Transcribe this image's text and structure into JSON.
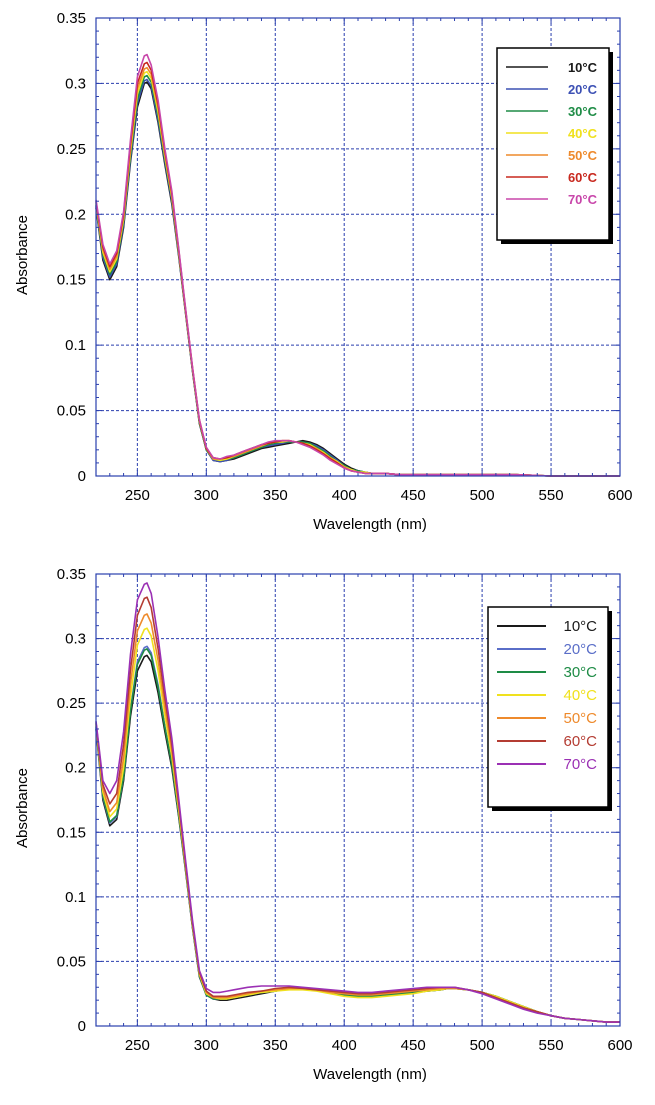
{
  "chart_data": [
    {
      "type": "line",
      "xlabel": "Wavelength (nm)",
      "ylabel": "Absorbance",
      "xlim": [
        220,
        600
      ],
      "ylim": [
        0,
        0.35
      ],
      "xticks": [
        250,
        300,
        350,
        400,
        450,
        500,
        550,
        600
      ],
      "yticks": [
        0,
        0.05,
        0.1,
        0.15,
        0.2,
        0.25,
        0.3,
        0.35
      ],
      "ytick_labels": [
        "0",
        "0.05",
        "0.1",
        "0.15",
        "0.2",
        "0.25",
        "0.3",
        "0.35"
      ],
      "grid": true,
      "legend_placement": "top-right",
      "legend_style": "bold",
      "x": [
        220,
        225,
        230,
        235,
        240,
        245,
        250,
        255,
        257,
        260,
        265,
        270,
        275,
        280,
        285,
        290,
        295,
        300,
        305,
        310,
        315,
        320,
        325,
        330,
        335,
        340,
        345,
        350,
        355,
        360,
        365,
        370,
        375,
        380,
        385,
        390,
        395,
        400,
        405,
        410,
        415,
        420,
        425,
        430,
        440,
        450,
        475,
        500,
        525,
        550,
        575,
        600
      ],
      "series": [
        {
          "name": "10°C",
          "color": "#1a1a1a",
          "values": [
            0.205,
            0.165,
            0.15,
            0.16,
            0.19,
            0.24,
            0.282,
            0.3,
            0.301,
            0.296,
            0.27,
            0.238,
            0.208,
            0.168,
            0.124,
            0.08,
            0.04,
            0.02,
            0.012,
            0.011,
            0.012,
            0.013,
            0.015,
            0.017,
            0.019,
            0.021,
            0.022,
            0.023,
            0.024,
            0.025,
            0.026,
            0.027,
            0.026,
            0.024,
            0.021,
            0.017,
            0.013,
            0.009,
            0.006,
            0.004,
            0.003,
            0.002,
            0.002,
            0.002,
            0.001,
            0.001,
            0.001,
            0.001,
            0.001,
            0.0,
            0.0,
            0.0
          ]
        },
        {
          "name": "20°C",
          "color": "#3c50b4",
          "values": [
            0.206,
            0.167,
            0.152,
            0.162,
            0.192,
            0.242,
            0.285,
            0.302,
            0.303,
            0.298,
            0.272,
            0.24,
            0.21,
            0.169,
            0.125,
            0.081,
            0.041,
            0.02,
            0.012,
            0.011,
            0.012,
            0.014,
            0.016,
            0.018,
            0.02,
            0.022,
            0.023,
            0.024,
            0.025,
            0.026,
            0.026,
            0.026,
            0.025,
            0.023,
            0.02,
            0.016,
            0.012,
            0.008,
            0.005,
            0.004,
            0.003,
            0.002,
            0.002,
            0.002,
            0.001,
            0.001,
            0.001,
            0.001,
            0.001,
            0.0,
            0.0,
            0.0
          ]
        },
        {
          "name": "30°C",
          "color": "#1e8c46",
          "values": [
            0.207,
            0.169,
            0.154,
            0.164,
            0.194,
            0.245,
            0.288,
            0.305,
            0.306,
            0.301,
            0.275,
            0.242,
            0.212,
            0.17,
            0.126,
            0.081,
            0.041,
            0.02,
            0.013,
            0.012,
            0.013,
            0.014,
            0.016,
            0.018,
            0.02,
            0.022,
            0.024,
            0.025,
            0.026,
            0.026,
            0.026,
            0.026,
            0.025,
            0.022,
            0.019,
            0.015,
            0.011,
            0.008,
            0.005,
            0.004,
            0.003,
            0.002,
            0.002,
            0.002,
            0.001,
            0.001,
            0.001,
            0.001,
            0.001,
            0.0,
            0.0,
            0.0
          ]
        },
        {
          "name": "40°C",
          "color": "#f0e11e",
          "values": [
            0.208,
            0.171,
            0.156,
            0.166,
            0.196,
            0.248,
            0.292,
            0.308,
            0.309,
            0.304,
            0.278,
            0.244,
            0.213,
            0.171,
            0.126,
            0.082,
            0.042,
            0.021,
            0.013,
            0.012,
            0.013,
            0.015,
            0.017,
            0.019,
            0.021,
            0.023,
            0.025,
            0.026,
            0.026,
            0.027,
            0.026,
            0.025,
            0.024,
            0.021,
            0.018,
            0.014,
            0.011,
            0.007,
            0.005,
            0.003,
            0.003,
            0.002,
            0.002,
            0.002,
            0.001,
            0.001,
            0.001,
            0.001,
            0.001,
            0.0,
            0.0,
            0.0
          ]
        },
        {
          "name": "50°C",
          "color": "#ee8a2c",
          "values": [
            0.209,
            0.173,
            0.158,
            0.168,
            0.198,
            0.251,
            0.296,
            0.311,
            0.312,
            0.307,
            0.281,
            0.246,
            0.215,
            0.172,
            0.127,
            0.082,
            0.042,
            0.021,
            0.013,
            0.013,
            0.014,
            0.015,
            0.017,
            0.019,
            0.021,
            0.023,
            0.025,
            0.026,
            0.027,
            0.027,
            0.026,
            0.025,
            0.023,
            0.021,
            0.017,
            0.014,
            0.01,
            0.007,
            0.004,
            0.003,
            0.002,
            0.002,
            0.002,
            0.002,
            0.001,
            0.001,
            0.001,
            0.001,
            0.001,
            0.0,
            0.0,
            0.0
          ]
        },
        {
          "name": "60°C",
          "color": "#c8281e",
          "values": [
            0.21,
            0.175,
            0.16,
            0.17,
            0.2,
            0.254,
            0.3,
            0.315,
            0.316,
            0.31,
            0.284,
            0.248,
            0.216,
            0.173,
            0.127,
            0.083,
            0.043,
            0.021,
            0.014,
            0.013,
            0.014,
            0.016,
            0.018,
            0.02,
            0.022,
            0.024,
            0.025,
            0.026,
            0.027,
            0.027,
            0.026,
            0.025,
            0.023,
            0.02,
            0.017,
            0.013,
            0.01,
            0.006,
            0.004,
            0.003,
            0.002,
            0.002,
            0.002,
            0.002,
            0.001,
            0.001,
            0.001,
            0.001,
            0.001,
            0.0,
            0.0,
            0.0
          ]
        },
        {
          "name": "70°C",
          "color": "#c846aa",
          "values": [
            0.211,
            0.177,
            0.162,
            0.172,
            0.202,
            0.257,
            0.305,
            0.321,
            0.322,
            0.314,
            0.287,
            0.25,
            0.218,
            0.174,
            0.128,
            0.083,
            0.043,
            0.022,
            0.014,
            0.013,
            0.015,
            0.016,
            0.018,
            0.02,
            0.022,
            0.024,
            0.026,
            0.027,
            0.027,
            0.027,
            0.026,
            0.024,
            0.022,
            0.019,
            0.016,
            0.012,
            0.009,
            0.006,
            0.004,
            0.003,
            0.002,
            0.002,
            0.002,
            0.002,
            0.001,
            0.001,
            0.001,
            0.001,
            0.001,
            0.0,
            0.0,
            0.0
          ]
        }
      ]
    },
    {
      "type": "line",
      "xlabel": "Wavelength (nm)",
      "ylabel": "Absorbance",
      "xlim": [
        220,
        600
      ],
      "ylim": [
        0,
        0.35
      ],
      "xticks": [
        250,
        300,
        350,
        400,
        450,
        500,
        550,
        600
      ],
      "yticks": [
        0,
        0.05,
        0.1,
        0.15,
        0.2,
        0.25,
        0.3,
        0.35
      ],
      "ytick_labels": [
        "0",
        "0.05",
        "0.1",
        "0.15",
        "0.2",
        "0.25",
        "0.3",
        "0.35"
      ],
      "grid": true,
      "legend_placement": "top-right",
      "legend_style": "regular",
      "x": [
        220,
        225,
        230,
        235,
        240,
        245,
        250,
        255,
        257,
        260,
        265,
        270,
        275,
        280,
        285,
        290,
        295,
        300,
        305,
        310,
        315,
        320,
        330,
        340,
        350,
        360,
        370,
        380,
        390,
        400,
        410,
        420,
        430,
        440,
        450,
        460,
        470,
        475,
        480,
        490,
        500,
        510,
        520,
        530,
        540,
        550,
        560,
        570,
        580,
        590,
        600
      ],
      "series": [
        {
          "name": "10°C",
          "color": "#1a1a1a",
          "values": [
            0.23,
            0.175,
            0.155,
            0.16,
            0.19,
            0.24,
            0.275,
            0.286,
            0.287,
            0.282,
            0.258,
            0.228,
            0.2,
            0.162,
            0.12,
            0.076,
            0.038,
            0.024,
            0.021,
            0.02,
            0.02,
            0.021,
            0.023,
            0.025,
            0.027,
            0.029,
            0.029,
            0.028,
            0.026,
            0.024,
            0.023,
            0.023,
            0.024,
            0.025,
            0.026,
            0.027,
            0.028,
            0.029,
            0.029,
            0.028,
            0.026,
            0.023,
            0.019,
            0.015,
            0.011,
            0.008,
            0.006,
            0.005,
            0.004,
            0.003,
            0.003
          ]
        },
        {
          "name": "20°C",
          "color": "#5a6ec8",
          "values": [
            0.231,
            0.177,
            0.157,
            0.162,
            0.193,
            0.245,
            0.282,
            0.293,
            0.294,
            0.289,
            0.264,
            0.232,
            0.203,
            0.164,
            0.121,
            0.077,
            0.039,
            0.024,
            0.021,
            0.021,
            0.021,
            0.022,
            0.024,
            0.026,
            0.027,
            0.029,
            0.029,
            0.028,
            0.026,
            0.025,
            0.023,
            0.023,
            0.024,
            0.025,
            0.026,
            0.027,
            0.028,
            0.029,
            0.029,
            0.028,
            0.026,
            0.023,
            0.019,
            0.015,
            0.011,
            0.008,
            0.006,
            0.005,
            0.004,
            0.003,
            0.003
          ]
        },
        {
          "name": "30°C",
          "color": "#1e8c46",
          "values": [
            0.232,
            0.178,
            0.158,
            0.163,
            0.193,
            0.244,
            0.28,
            0.291,
            0.292,
            0.287,
            0.262,
            0.231,
            0.203,
            0.164,
            0.121,
            0.077,
            0.039,
            0.024,
            0.021,
            0.021,
            0.021,
            0.022,
            0.024,
            0.026,
            0.027,
            0.029,
            0.029,
            0.028,
            0.026,
            0.024,
            0.023,
            0.023,
            0.024,
            0.025,
            0.026,
            0.027,
            0.028,
            0.029,
            0.029,
            0.028,
            0.026,
            0.023,
            0.019,
            0.015,
            0.011,
            0.008,
            0.006,
            0.005,
            0.004,
            0.003,
            0.003
          ]
        },
        {
          "name": "40°C",
          "color": "#f0e11e",
          "values": [
            0.233,
            0.181,
            0.162,
            0.168,
            0.2,
            0.255,
            0.295,
            0.307,
            0.308,
            0.302,
            0.275,
            0.24,
            0.209,
            0.167,
            0.123,
            0.078,
            0.04,
            0.025,
            0.022,
            0.021,
            0.021,
            0.022,
            0.024,
            0.026,
            0.027,
            0.028,
            0.028,
            0.027,
            0.025,
            0.023,
            0.022,
            0.022,
            0.023,
            0.024,
            0.025,
            0.027,
            0.028,
            0.029,
            0.029,
            0.028,
            0.026,
            0.023,
            0.019,
            0.015,
            0.011,
            0.008,
            0.006,
            0.005,
            0.004,
            0.003,
            0.003
          ]
        },
        {
          "name": "50°C",
          "color": "#ee8a2c",
          "values": [
            0.234,
            0.184,
            0.166,
            0.173,
            0.208,
            0.265,
            0.306,
            0.318,
            0.319,
            0.312,
            0.283,
            0.247,
            0.213,
            0.17,
            0.124,
            0.079,
            0.041,
            0.026,
            0.022,
            0.022,
            0.022,
            0.023,
            0.025,
            0.027,
            0.028,
            0.029,
            0.029,
            0.028,
            0.026,
            0.025,
            0.024,
            0.024,
            0.025,
            0.026,
            0.027,
            0.028,
            0.029,
            0.029,
            0.029,
            0.028,
            0.026,
            0.022,
            0.018,
            0.014,
            0.011,
            0.008,
            0.006,
            0.005,
            0.004,
            0.003,
            0.003
          ]
        },
        {
          "name": "60°C",
          "color": "#b43c32",
          "values": [
            0.235,
            0.187,
            0.172,
            0.18,
            0.218,
            0.276,
            0.318,
            0.331,
            0.332,
            0.324,
            0.292,
            0.254,
            0.218,
            0.173,
            0.126,
            0.08,
            0.042,
            0.027,
            0.023,
            0.023,
            0.023,
            0.024,
            0.026,
            0.027,
            0.029,
            0.03,
            0.029,
            0.028,
            0.027,
            0.026,
            0.025,
            0.025,
            0.026,
            0.027,
            0.028,
            0.029,
            0.03,
            0.03,
            0.03,
            0.028,
            0.026,
            0.022,
            0.018,
            0.014,
            0.011,
            0.008,
            0.006,
            0.005,
            0.004,
            0.003,
            0.003
          ]
        },
        {
          "name": "70°C",
          "color": "#9b30b4",
          "values": [
            0.236,
            0.19,
            0.18,
            0.19,
            0.228,
            0.288,
            0.33,
            0.342,
            0.343,
            0.335,
            0.301,
            0.26,
            0.223,
            0.176,
            0.128,
            0.082,
            0.043,
            0.029,
            0.026,
            0.026,
            0.027,
            0.028,
            0.03,
            0.031,
            0.031,
            0.031,
            0.03,
            0.029,
            0.028,
            0.027,
            0.026,
            0.026,
            0.027,
            0.028,
            0.029,
            0.03,
            0.03,
            0.03,
            0.03,
            0.028,
            0.025,
            0.021,
            0.017,
            0.013,
            0.01,
            0.008,
            0.006,
            0.005,
            0.004,
            0.003,
            0.003
          ]
        }
      ]
    }
  ]
}
